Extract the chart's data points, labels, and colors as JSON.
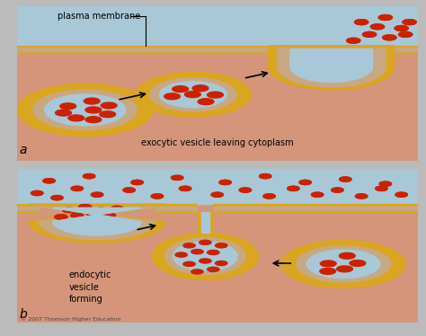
{
  "title": "",
  "bg_salmon": "#D4957A",
  "bg_blue": "#A8C8D8",
  "membrane_yellow": "#DAA520",
  "membrane_inner": "#C8A882",
  "dots_red": "#CC2200",
  "text_color": "#222222",
  "panel_a_label": "a",
  "panel_b_label": "b",
  "label_a_text": "exocytic vesicle leaving cytoplasm",
  "label_b_text1": "endocytic",
  "label_b_text2": "vesicle",
  "label_b_text3": "forming",
  "plasma_membrane_label": "plasma membrane",
  "copyright": "© 2007 Thomson Higher Education",
  "fig_width": 4.74,
  "fig_height": 3.74,
  "dpi": 100
}
